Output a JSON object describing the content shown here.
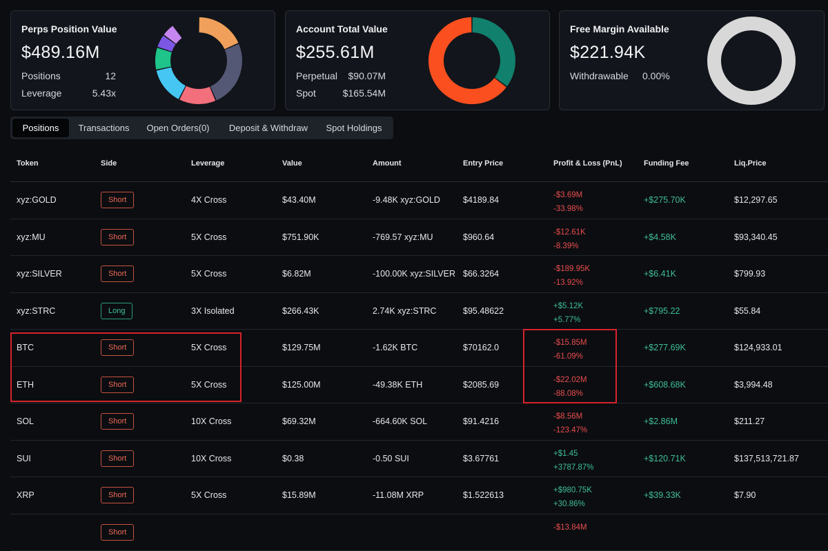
{
  "cards": {
    "perps": {
      "title": "Perps Position Value",
      "value": "$489.16M",
      "rows": [
        {
          "label": "Positions",
          "value": "12"
        },
        {
          "label": "Leverage",
          "value": "5.43x"
        }
      ],
      "donut": [
        {
          "share": 0.185,
          "color": "#f0a05a"
        },
        {
          "share": 0.25,
          "color": "#545874"
        },
        {
          "share": 0.14,
          "color": "#f36f7c"
        },
        {
          "share": 0.14,
          "color": "#46c7f3"
        },
        {
          "share": 0.085,
          "color": "#1fc48a"
        },
        {
          "share": 0.05,
          "color": "#7b57e4"
        },
        {
          "share": 0.05,
          "color": "#c586f0"
        }
      ]
    },
    "account": {
      "title": "Account Total Value",
      "value": "$255.61M",
      "rows": [
        {
          "label": "Perpetual",
          "value": "$90.07M"
        },
        {
          "label": "Spot",
          "value": "$165.54M"
        }
      ],
      "donut": [
        {
          "share": 0.3524,
          "color": "#11806c"
        },
        {
          "share": 0.6476,
          "color": "#fb4f20"
        }
      ]
    },
    "margin": {
      "title": "Free Margin Available",
      "value": "$221.94K",
      "rows": [
        {
          "label": "Withdrawable",
          "value": "0.00%"
        }
      ],
      "donut": [
        {
          "share": 1.0,
          "color": "#d8d8d8"
        }
      ]
    }
  },
  "tabs": [
    "Positions",
    "Transactions",
    "Open Orders(0)",
    "Deposit & Withdraw",
    "Spot Holdings"
  ],
  "active_tab": "Positions",
  "columns": [
    "Token",
    "Side",
    "Leverage",
    "Value",
    "Amount",
    "Entry Price",
    "Profit & Loss (PnL)",
    "Funding Fee",
    "Liq.Price"
  ],
  "rows": [
    {
      "token": "xyz:GOLD",
      "side": "Short",
      "leverage": "4X Cross",
      "value": "$43.40M",
      "amount": "-9.48K xyz:GOLD",
      "entry": "$4189.84",
      "pnl": "-$3.69M",
      "pnl_pct": "-33.98%",
      "funding": "+$275.70K",
      "liq": "$12,297.65"
    },
    {
      "token": "xyz:MU",
      "side": "Short",
      "leverage": "5X Cross",
      "value": "$751.90K",
      "amount": "-769.57 xyz:MU",
      "entry": "$960.64",
      "pnl": "-$12.61K",
      "pnl_pct": "-8.39%",
      "funding": "+$4.58K",
      "liq": "$93,340.45"
    },
    {
      "token": "xyz:SILVER",
      "side": "Short",
      "leverage": "5X Cross",
      "value": "$6.82M",
      "amount": "-100.00K xyz:SILVER",
      "entry": "$66.3264",
      "pnl": "-$189.95K",
      "pnl_pct": "-13.92%",
      "funding": "+$6.41K",
      "liq": "$799.93"
    },
    {
      "token": "xyz:STRC",
      "side": "Long",
      "leverage": "3X Isolated",
      "value": "$266.43K",
      "amount": "2.74K xyz:STRC",
      "entry": "$95.48622",
      "pnl": "+$5.12K",
      "pnl_pct": "+5.77%",
      "funding": "+$795.22",
      "liq": "$55.84"
    },
    {
      "token": "BTC",
      "side": "Short",
      "leverage": "5X Cross",
      "value": "$129.75M",
      "amount": "-1.62K BTC",
      "entry": "$70162.0",
      "pnl": "-$15.85M",
      "pnl_pct": "-61.09%",
      "funding": "+$277.69K",
      "liq": "$124,933.01"
    },
    {
      "token": "ETH",
      "side": "Short",
      "leverage": "5X Cross",
      "value": "$125.00M",
      "amount": "-49.38K ETH",
      "entry": "$2085.69",
      "pnl": "-$22.02M",
      "pnl_pct": "-88.08%",
      "funding": "+$608.68K",
      "liq": "$3,994.48"
    },
    {
      "token": "SOL",
      "side": "Short",
      "leverage": "10X Cross",
      "value": "$69.32M",
      "amount": "-664.60K SOL",
      "entry": "$91.4216",
      "pnl": "-$8.56M",
      "pnl_pct": "-123.47%",
      "funding": "+$2.86M",
      "liq": "$211.27"
    },
    {
      "token": "SUI",
      "side": "Short",
      "leverage": "10X Cross",
      "value": "$0.38",
      "amount": "-0.50 SUI",
      "entry": "$3.67761",
      "pnl": "+$1.45",
      "pnl_pct": "+3787.87%",
      "funding": "+$120.71K",
      "liq": "$137,513,721.87"
    },
    {
      "token": "XRP",
      "side": "Short",
      "leverage": "5X Cross",
      "value": "$15.89M",
      "amount": "-11.08M XRP",
      "entry": "$1.522613",
      "pnl": "+$980.75K",
      "pnl_pct": "+30.86%",
      "funding": "+$39.33K",
      "liq": "$7.90"
    },
    {
      "token": "",
      "side": "Short",
      "leverage": "",
      "value": "",
      "amount": "",
      "entry": "",
      "pnl": "-$13.84M",
      "pnl_pct": "",
      "funding": "",
      "liq": ""
    }
  ]
}
